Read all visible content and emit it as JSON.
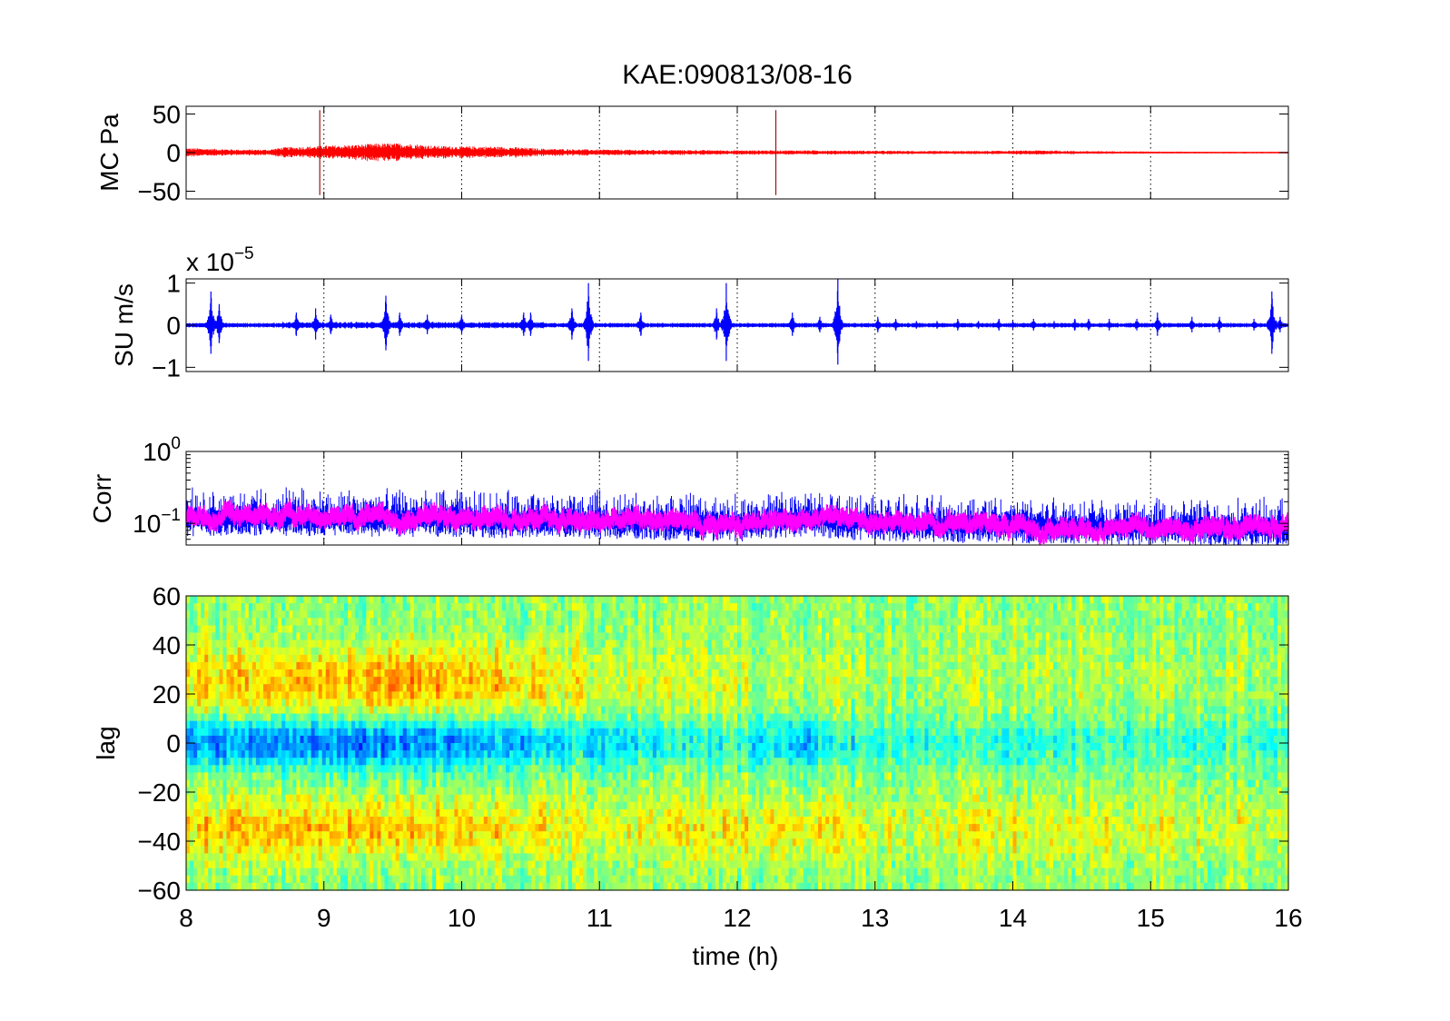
{
  "title": "KAE:090813/08-16",
  "chart_data": [
    {
      "type": "line",
      "ylabel": "MC Pa",
      "xlim": [
        8,
        16
      ],
      "ylim": [
        -60,
        60
      ],
      "yticks": [
        -50,
        0,
        50
      ],
      "ytick_labels": [
        "−50",
        "0",
        "50"
      ],
      "color": "#ff0000",
      "grid": "x-dotted",
      "envelope": [
        [
          8.0,
          6
        ],
        [
          8.2,
          5
        ],
        [
          8.4,
          4
        ],
        [
          8.6,
          4
        ],
        [
          8.7,
          7
        ],
        [
          8.9,
          8
        ],
        [
          9.0,
          9
        ],
        [
          9.2,
          10
        ],
        [
          9.4,
          12
        ],
        [
          9.6,
          12
        ],
        [
          9.8,
          9
        ],
        [
          10.0,
          8
        ],
        [
          10.2,
          8
        ],
        [
          10.4,
          7
        ],
        [
          10.6,
          5
        ],
        [
          11.0,
          4
        ],
        [
          11.5,
          3.5
        ],
        [
          12.0,
          3
        ],
        [
          12.5,
          3
        ],
        [
          13.0,
          2.5
        ],
        [
          13.5,
          2
        ],
        [
          14.0,
          2.5
        ],
        [
          14.2,
          3
        ],
        [
          14.5,
          2
        ],
        [
          15.0,
          1.5
        ],
        [
          15.5,
          1
        ],
        [
          16.0,
          1
        ]
      ],
      "spikes": [
        {
          "x": 8.97,
          "y": 55
        },
        {
          "x": 12.28,
          "y": 55
        }
      ]
    },
    {
      "type": "line",
      "ylabel": "SU m/s",
      "exponent_label": "x 10",
      "exponent_power": "−5",
      "xlim": [
        8,
        16
      ],
      "ylim": [
        -1.1,
        1.1
      ],
      "yticks": [
        -1,
        0,
        1
      ],
      "ytick_labels": [
        "−1",
        "0",
        "1"
      ],
      "color": "#0000ff",
      "grid": "x-dotted",
      "bursts": [
        [
          8.18,
          0.8
        ],
        [
          8.24,
          0.5
        ],
        [
          8.8,
          0.3
        ],
        [
          8.94,
          0.4
        ],
        [
          9.05,
          0.25
        ],
        [
          9.45,
          0.7
        ],
        [
          9.55,
          0.3
        ],
        [
          9.75,
          0.25
        ],
        [
          10.0,
          0.25
        ],
        [
          10.45,
          0.3
        ],
        [
          10.5,
          0.3
        ],
        [
          10.8,
          0.4
        ],
        [
          10.92,
          1.0
        ],
        [
          11.3,
          0.3
        ],
        [
          11.85,
          0.4
        ],
        [
          11.92,
          1.0
        ],
        [
          12.4,
          0.3
        ],
        [
          12.6,
          0.2
        ],
        [
          12.73,
          1.1
        ],
        [
          13.02,
          0.2
        ],
        [
          13.15,
          0.15
        ],
        [
          13.3,
          0.1
        ],
        [
          13.45,
          0.1
        ],
        [
          13.6,
          0.15
        ],
        [
          13.75,
          0.1
        ],
        [
          13.9,
          0.15
        ],
        [
          14.0,
          0.1
        ],
        [
          14.15,
          0.15
        ],
        [
          14.3,
          0.1
        ],
        [
          14.45,
          0.15
        ],
        [
          14.55,
          0.15
        ],
        [
          14.7,
          0.15
        ],
        [
          14.9,
          0.15
        ],
        [
          15.05,
          0.3
        ],
        [
          15.3,
          0.2
        ],
        [
          15.5,
          0.2
        ],
        [
          15.75,
          0.15
        ],
        [
          15.88,
          0.8
        ],
        [
          15.94,
          0.2
        ]
      ]
    },
    {
      "type": "line",
      "ylabel": "Corr",
      "xlim": [
        8,
        16
      ],
      "yscale": "log",
      "ylim": [
        0.05,
        1
      ],
      "yticks": [
        0.1,
        1
      ],
      "ytick_base": "10",
      "ytick_powers": [
        "−1",
        "0"
      ],
      "grid": "x-dotted",
      "series": [
        {
          "color": "#0000ff",
          "baseline": [
            [
              8,
              0.12
            ],
            [
              9,
              0.12
            ],
            [
              10,
              0.115
            ],
            [
              11,
              0.11
            ],
            [
              12,
              0.1
            ],
            [
              12.5,
              0.12
            ],
            [
              13,
              0.1
            ],
            [
              14,
              0.095
            ],
            [
              15,
              0.09
            ],
            [
              16,
              0.085
            ]
          ]
        },
        {
          "color": "#ff00ff",
          "baseline": [
            [
              8,
              0.13
            ],
            [
              9,
              0.125
            ],
            [
              10,
              0.12
            ],
            [
              11,
              0.115
            ],
            [
              12,
              0.1
            ],
            [
              12.5,
              0.125
            ],
            [
              13,
              0.1
            ],
            [
              14,
              0.095
            ],
            [
              15,
              0.09
            ],
            [
              16,
              0.09
            ]
          ]
        }
      ]
    },
    {
      "type": "heatmap",
      "ylabel": "lag",
      "xlabel": "time (h)",
      "xlim": [
        8,
        16
      ],
      "ylim": [
        -60,
        60
      ],
      "yticks": [
        -60,
        -40,
        -20,
        0,
        20,
        40,
        60
      ],
      "ytick_labels": [
        "−60",
        "−40",
        "−20",
        "0",
        "20",
        "40",
        "60"
      ],
      "xticks": [
        8,
        9,
        10,
        11,
        12,
        13,
        14,
        15,
        16
      ],
      "xtick_labels": [
        "8",
        "9",
        "10",
        "11",
        "12",
        "13",
        "14",
        "15",
        "16"
      ],
      "colormap": "jet",
      "bands": [
        {
          "lag": 25,
          "width": 14,
          "amplitude": 0.22,
          "strength": [
            [
              8,
              0.6
            ],
            [
              9,
              0.8
            ],
            [
              9.5,
              1.0
            ],
            [
              10,
              0.8
            ],
            [
              11,
              0.3
            ],
            [
              12,
              0.2
            ],
            [
              13,
              0.1
            ],
            [
              14,
              0.1
            ],
            [
              16,
              0.1
            ]
          ]
        },
        {
          "lag": 0,
          "width": 10,
          "amplitude": -0.28,
          "strength": [
            [
              8,
              0.9
            ],
            [
              9,
              1.0
            ],
            [
              10,
              0.9
            ],
            [
              11,
              0.6
            ],
            [
              12,
              0.4
            ],
            [
              12.5,
              0.7
            ],
            [
              13,
              0.3
            ],
            [
              14,
              0.4
            ],
            [
              15,
              0.3
            ],
            [
              16,
              0.3
            ]
          ]
        },
        {
          "lag": -35,
          "width": 12,
          "amplitude": 0.2,
          "strength": [
            [
              8,
              0.7
            ],
            [
              9,
              0.9
            ],
            [
              10,
              0.7
            ],
            [
              11,
              0.4
            ],
            [
              12,
              0.5
            ],
            [
              12.5,
              0.6
            ],
            [
              13,
              0.3
            ],
            [
              14,
              0.4
            ],
            [
              16,
              0.3
            ]
          ]
        }
      ]
    }
  ]
}
